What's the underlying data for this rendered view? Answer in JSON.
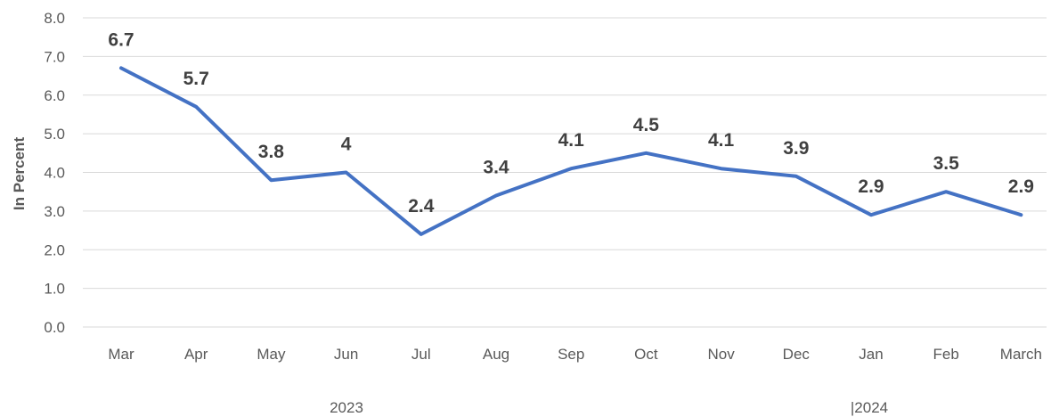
{
  "chart_data": {
    "type": "line",
    "categories": [
      "Mar",
      "Apr",
      "May",
      "Jun",
      "Jul",
      "Aug",
      "Sep",
      "Oct",
      "Nov",
      "Dec",
      "Jan",
      "Feb",
      "March"
    ],
    "series": [
      {
        "values": [
          6.7,
          5.7,
          3.8,
          4,
          2.4,
          3.4,
          4.1,
          4.5,
          4.1,
          3.9,
          2.9,
          3.5,
          2.9
        ],
        "data_labels": [
          "6.7",
          "5.7",
          "3.8",
          "4",
          "2.4",
          "3.4",
          "4.1",
          "4.5",
          "4.1",
          "3.9",
          "2.9",
          "3.5",
          "2.9"
        ],
        "color": "#4472c4"
      }
    ],
    "title": "",
    "xlabel": "",
    "ylabel": "In Percent",
    "ylim": [
      0,
      8
    ],
    "yticks": [
      "0.0",
      "1.0",
      "2.0",
      "3.0",
      "4.0",
      "5.0",
      "6.0",
      "7.0",
      "8.0"
    ],
    "grid": true,
    "year_groups": [
      "2023",
      "|2024"
    ]
  }
}
